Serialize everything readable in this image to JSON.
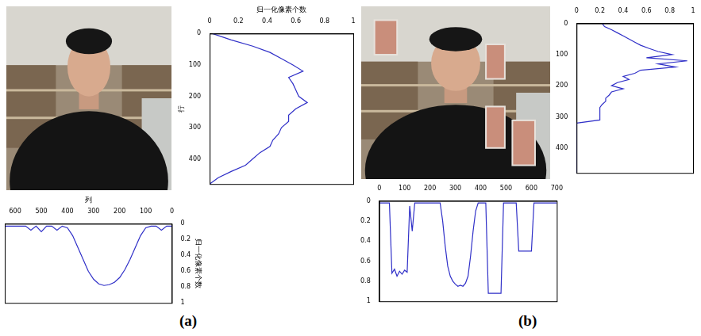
{
  "panel_labels": [
    "(a)",
    "(b)"
  ],
  "chart_data": [
    {
      "type": "line",
      "orientation": "horizontal",
      "xlabel": "行",
      "ylabel": "归一化像素个数",
      "color": "#3030c8",
      "x": [
        0,
        20,
        40,
        60,
        80,
        100,
        120,
        140,
        160,
        180,
        200,
        220,
        240,
        260,
        280,
        300,
        320,
        340,
        360,
        380,
        400,
        420,
        440,
        460,
        480
      ],
      "values": [
        0.02,
        0.15,
        0.3,
        0.42,
        0.5,
        0.58,
        0.65,
        0.55,
        0.58,
        0.6,
        0.62,
        0.68,
        0.6,
        0.55,
        0.55,
        0.5,
        0.48,
        0.44,
        0.42,
        0.35,
        0.3,
        0.25,
        0.15,
        0.06,
        0.0
      ],
      "xlim": [
        480,
        0
      ],
      "xticks": [
        0,
        100,
        200,
        300,
        400
      ],
      "ylim": [
        0,
        1
      ],
      "yticks": [
        0,
        0.2,
        0.4,
        0.6,
        0.8,
        1
      ],
      "grid": false
    },
    {
      "type": "line",
      "xlabel": "列",
      "ylabel": "归一化像素个数",
      "color": "#3030c8",
      "x": [
        0,
        20,
        40,
        60,
        80,
        100,
        120,
        140,
        160,
        180,
        200,
        220,
        240,
        260,
        280,
        300,
        320,
        340,
        360,
        380,
        400,
        420,
        440,
        460,
        480,
        500,
        520,
        540,
        560,
        580,
        600,
        620,
        640
      ],
      "values": [
        0.03,
        0.03,
        0.08,
        0.03,
        0.03,
        0.05,
        0.15,
        0.3,
        0.45,
        0.58,
        0.68,
        0.74,
        0.77,
        0.78,
        0.76,
        0.7,
        0.6,
        0.45,
        0.3,
        0.15,
        0.05,
        0.03,
        0.08,
        0.03,
        0.03,
        0.1,
        0.03,
        0.08,
        0.03,
        0.03,
        0.03,
        0.03,
        0.03
      ],
      "xlim": [
        640,
        0
      ],
      "xticks": [
        0,
        100,
        200,
        300,
        400,
        500,
        600
      ],
      "ylim": [
        1,
        0
      ],
      "yticks": [
        0,
        0.2,
        0.4,
        0.6,
        0.8,
        1
      ],
      "grid": false
    },
    {
      "type": "line",
      "orientation": "horizontal",
      "color": "#3030c8",
      "x": [
        0,
        10,
        20,
        30,
        40,
        50,
        60,
        70,
        80,
        90,
        100,
        110,
        120,
        130,
        140,
        150,
        160,
        170,
        180,
        190,
        200,
        210,
        220,
        230,
        240,
        250,
        260,
        270,
        280,
        290,
        300,
        310,
        320,
        330,
        340,
        350,
        360,
        370,
        380,
        390,
        400,
        410,
        420,
        430,
        440,
        450,
        460,
        470,
        480
      ],
      "values": [
        0.22,
        0.24,
        0.3,
        0.35,
        0.4,
        0.45,
        0.5,
        0.55,
        0.62,
        0.7,
        0.82,
        0.6,
        0.95,
        0.7,
        0.85,
        0.55,
        0.5,
        0.4,
        0.45,
        0.35,
        0.3,
        0.4,
        0.3,
        0.28,
        0.25,
        0.25,
        0.22,
        0.2,
        0.2,
        0.2,
        0.2,
        0.2,
        0.0,
        0.0,
        0.0,
        0.0,
        0.0,
        0.0,
        0.0,
        0.0,
        0.0,
        0.0,
        0.0,
        0.0,
        0.0,
        0.0,
        0.0,
        0.0,
        0.0
      ],
      "xlim": [
        480,
        0
      ],
      "xticks": [
        0,
        100,
        200,
        300,
        400
      ],
      "ylim": [
        0,
        1
      ],
      "yticks": [
        0,
        0.2,
        0.4,
        0.6,
        0.8,
        1
      ],
      "grid": false
    },
    {
      "type": "line",
      "color": "#3030c8",
      "x": [
        0,
        10,
        20,
        30,
        40,
        50,
        60,
        70,
        80,
        90,
        100,
        110,
        120,
        130,
        140,
        150,
        160,
        170,
        180,
        190,
        200,
        210,
        220,
        230,
        240,
        250,
        260,
        270,
        280,
        290,
        300,
        310,
        320,
        330,
        340,
        350,
        360,
        370,
        380,
        390,
        400,
        410,
        420,
        430,
        440,
        450,
        460,
        470,
        480,
        490,
        500,
        510,
        520,
        530,
        540,
        550,
        560,
        570,
        580,
        590,
        600,
        610,
        620,
        630,
        640,
        650,
        660,
        670,
        680,
        690,
        700
      ],
      "values": [
        0.02,
        0.02,
        0.02,
        0.02,
        0.02,
        0.72,
        0.68,
        0.75,
        0.7,
        0.73,
        0.69,
        0.71,
        0.05,
        0.3,
        0.02,
        0.02,
        0.02,
        0.02,
        0.02,
        0.02,
        0.02,
        0.02,
        0.02,
        0.02,
        0.02,
        0.2,
        0.45,
        0.65,
        0.75,
        0.8,
        0.83,
        0.85,
        0.84,
        0.85,
        0.82,
        0.75,
        0.55,
        0.3,
        0.1,
        0.02,
        0.02,
        0.02,
        0.02,
        0.92,
        0.92,
        0.92,
        0.92,
        0.92,
        0.92,
        0.02,
        0.02,
        0.02,
        0.02,
        0.02,
        0.02,
        0.5,
        0.5,
        0.5,
        0.5,
        0.5,
        0.5,
        0.02,
        0.02,
        0.02,
        0.02,
        0.02,
        0.02,
        0.02,
        0.02,
        0.02,
        0.02
      ],
      "xlim": [
        0,
        700
      ],
      "xticks": [
        0,
        100,
        200,
        300,
        400,
        500,
        600,
        700
      ],
      "ylim": [
        1,
        0
      ],
      "yticks": [
        0,
        0.2,
        0.4,
        0.6,
        0.8,
        1
      ],
      "grid": false
    }
  ]
}
